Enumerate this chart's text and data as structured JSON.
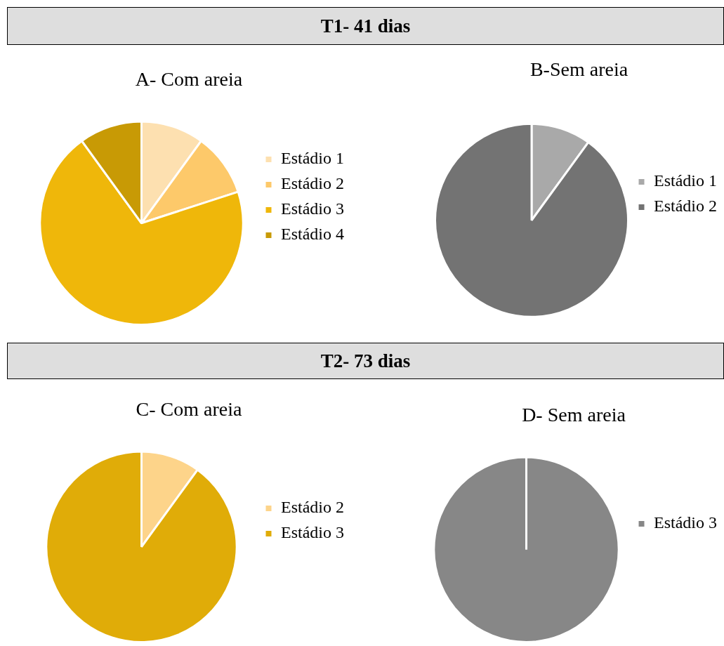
{
  "chart_data": [
    {
      "type": "other",
      "title": "T1- 41 dias"
    },
    {
      "type": "pie",
      "title": "A- Com areia",
      "categories": [
        "Estádio 1",
        "Estádio 2",
        "Estádio 3",
        "Estádio 4"
      ],
      "values": [
        10,
        10,
        70,
        10
      ],
      "colors": [
        "#fde0b0",
        "#fdc96a",
        "#efb70a",
        "#c89a05"
      ],
      "legend": "right"
    },
    {
      "type": "pie",
      "title": "B-Sem areia",
      "categories": [
        "Estádio 1",
        "Estádio 2"
      ],
      "values": [
        10,
        90
      ],
      "colors": [
        "#a9a9a9",
        "#737373"
      ],
      "legend": "right"
    },
    {
      "type": "other",
      "title": "T2- 73 dias"
    },
    {
      "type": "pie",
      "title": "C- Com areia",
      "categories": [
        "Estádio 2",
        "Estádio 3"
      ],
      "values": [
        10,
        90
      ],
      "colors": [
        "#fdd48a",
        "#e0ac08"
      ],
      "legend": "right"
    },
    {
      "type": "pie",
      "title": "D- Sem areia",
      "categories": [
        "Estádio 3"
      ],
      "values": [
        100
      ],
      "colors": [
        "#878787"
      ],
      "legend": "right"
    }
  ]
}
